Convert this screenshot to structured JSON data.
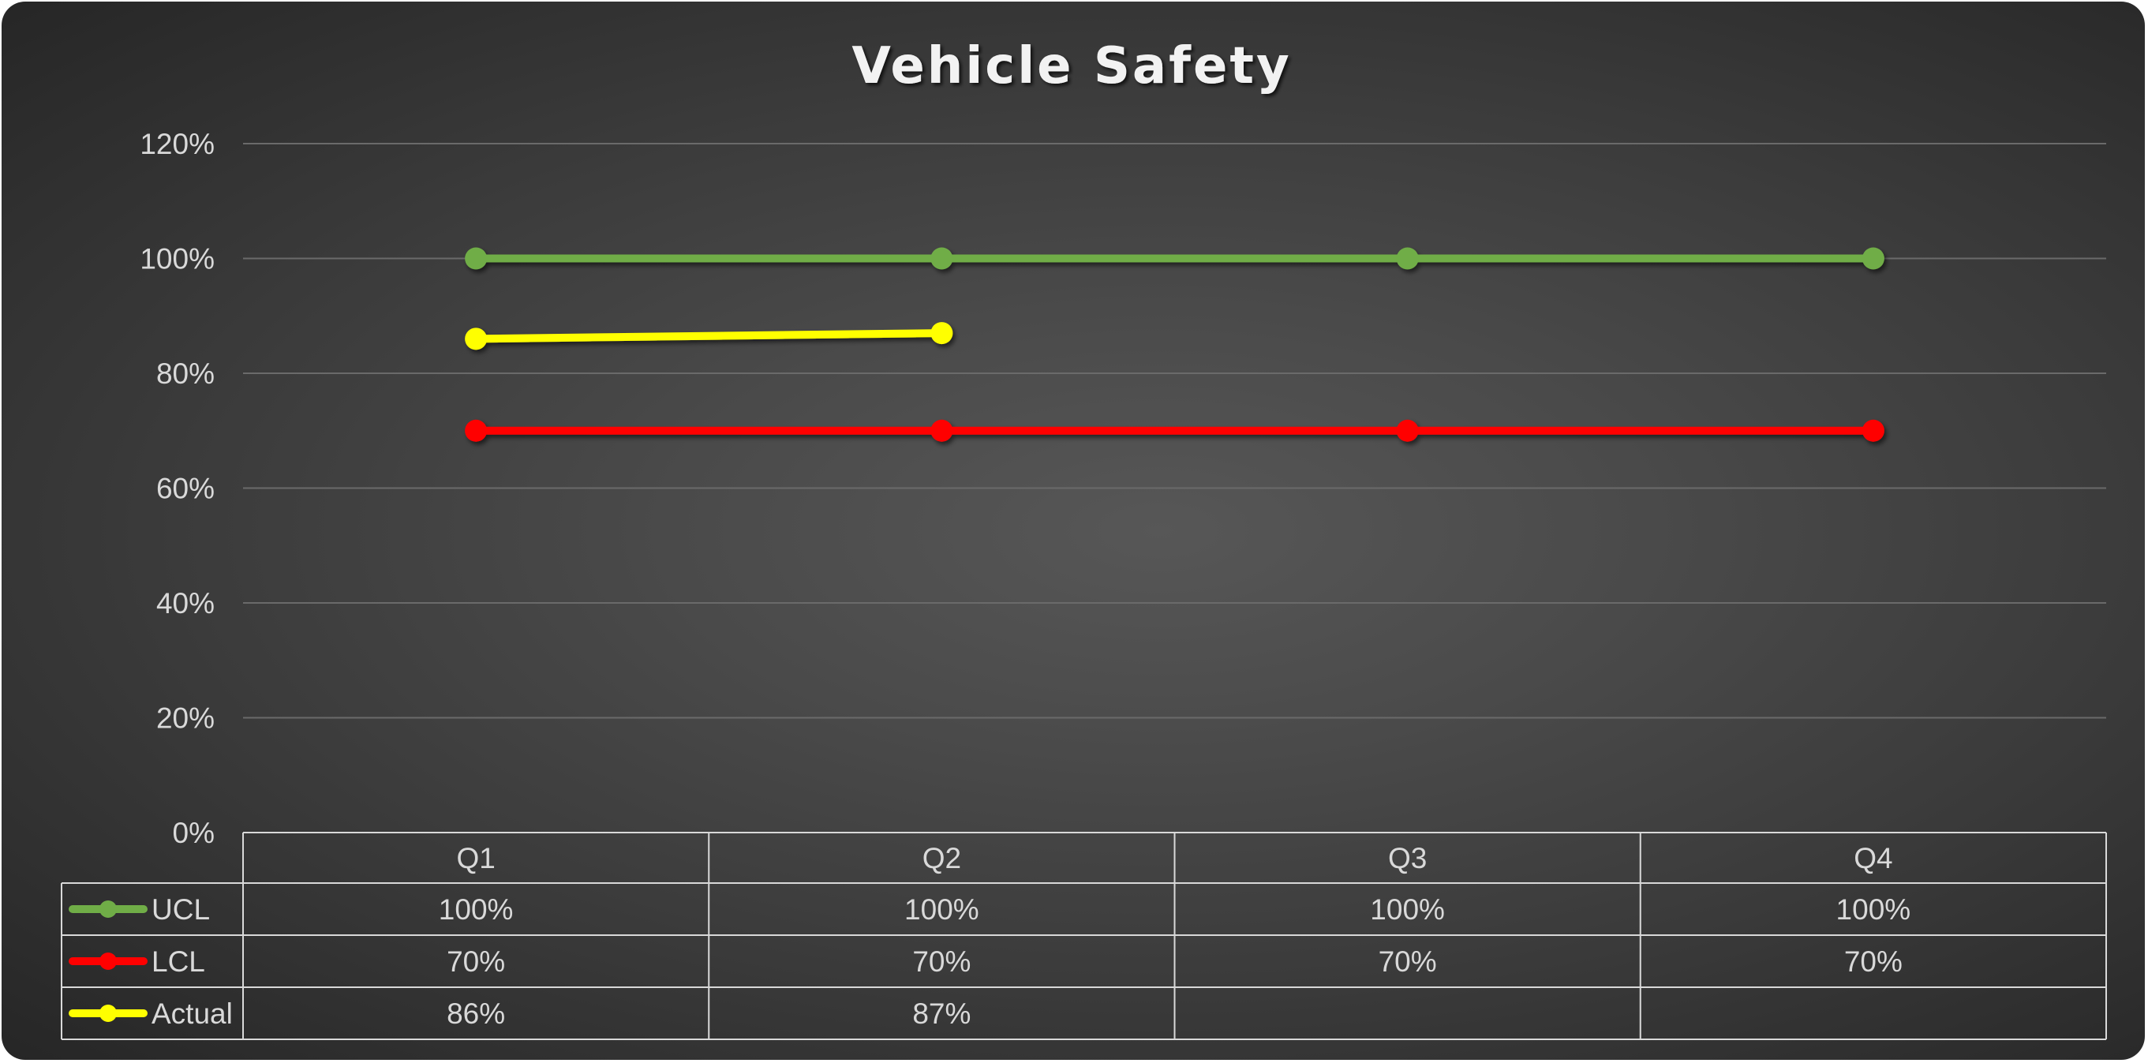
{
  "chart_data": {
    "type": "line",
    "title": "Vehicle Safety",
    "categories": [
      "Q1",
      "Q2",
      "Q3",
      "Q4"
    ],
    "ylim": [
      0,
      1.2
    ],
    "y_ticks": [
      0,
      0.2,
      0.4,
      0.6,
      0.8,
      1.0,
      1.2
    ],
    "y_tick_labels": [
      "0%",
      "20%",
      "40%",
      "60%",
      "80%",
      "100%",
      "120%"
    ],
    "grid": true,
    "legend": "data table",
    "series": [
      {
        "name": "UCL",
        "color": "#70ad47",
        "values": [
          1.0,
          1.0,
          1.0,
          1.0
        ],
        "labels": [
          "100%",
          "100%",
          "100%",
          "100%"
        ]
      },
      {
        "name": "LCL",
        "color": "#ff0000",
        "values": [
          0.7,
          0.7,
          0.7,
          0.7
        ],
        "labels": [
          "70%",
          "70%",
          "70%",
          "70%"
        ]
      },
      {
        "name": "Actual",
        "color": "#ffff00",
        "values": [
          0.86,
          0.87,
          null,
          null
        ],
        "labels": [
          "86%",
          "87%",
          "",
          ""
        ]
      }
    ]
  }
}
